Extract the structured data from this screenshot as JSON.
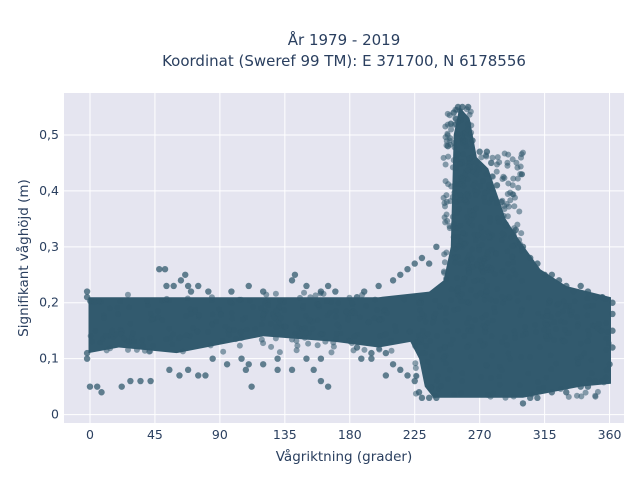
{
  "chart_data": {
    "type": "scatter",
    "title_lines": [
      "År 1979 - 2019",
      "Koordinat (Sweref 99 TM): E 371700, N 6178556"
    ],
    "xlabel": "Vågriktning (grader)",
    "ylabel": "Signifikant våghöjd (m)",
    "xlim": [
      -18,
      370
    ],
    "ylim": [
      -0.015,
      0.575
    ],
    "x_ticks": [
      0,
      45,
      90,
      135,
      180,
      225,
      270,
      315,
      360
    ],
    "x_tick_labels": [
      "0",
      "45",
      "90",
      "135",
      "180",
      "225",
      "270",
      "315",
      "360"
    ],
    "y_ticks": [
      0,
      0.1,
      0.2,
      0.3,
      0.4,
      0.5
    ],
    "y_tick_labels": [
      "0",
      "0,1",
      "0,2",
      "0,3",
      "0,4",
      "0,5"
    ],
    "grid": true,
    "marker_color": "#325a6e",
    "point_density_regions": [
      {
        "x_range": [
          0,
          360
        ],
        "y_range": [
          0.13,
          0.21
        ],
        "kind": "dense band"
      },
      {
        "x_range": [
          0,
          210
        ],
        "y_range": [
          0.11,
          0.22
        ],
        "kind": "band edges"
      },
      {
        "x_range": [
          225,
          360
        ],
        "y_range": [
          0.03,
          0.21
        ],
        "kind": "dense lower block"
      },
      {
        "x_range": [
          245,
          265
        ],
        "y_range": [
          0.21,
          0.55
        ],
        "kind": "peak"
      },
      {
        "x_range": [
          265,
          300
        ],
        "y_range": [
          0.21,
          0.47
        ],
        "kind": "peak shoulder"
      }
    ],
    "series": [
      {
        "points": [
          [
            0,
            0.05
          ],
          [
            5,
            0.05
          ],
          [
            8,
            0.04
          ],
          [
            22,
            0.05
          ],
          [
            28,
            0.06
          ],
          [
            35,
            0.06
          ],
          [
            42,
            0.06
          ],
          [
            48,
            0.26
          ],
          [
            52,
            0.26
          ],
          [
            53,
            0.23
          ],
          [
            58,
            0.23
          ],
          [
            63,
            0.24
          ],
          [
            66,
            0.25
          ],
          [
            68,
            0.23
          ],
          [
            70,
            0.22
          ],
          [
            75,
            0.23
          ],
          [
            82,
            0.22
          ],
          [
            98,
            0.22
          ],
          [
            110,
            0.23
          ],
          [
            120,
            0.22
          ],
          [
            140,
            0.24
          ],
          [
            142,
            0.25
          ],
          [
            150,
            0.23
          ],
          [
            160,
            0.22
          ],
          [
            165,
            0.23
          ],
          [
            170,
            0.22
          ],
          [
            55,
            0.08
          ],
          [
            62,
            0.07
          ],
          [
            68,
            0.08
          ],
          [
            75,
            0.07
          ],
          [
            80,
            0.07
          ],
          [
            85,
            0.1
          ],
          [
            95,
            0.09
          ],
          [
            105,
            0.1
          ],
          [
            120,
            0.09
          ],
          [
            130,
            0.1
          ],
          [
            150,
            0.1
          ],
          [
            160,
            0.1
          ],
          [
            108,
            0.08
          ],
          [
            110,
            0.09
          ],
          [
            130,
            0.08
          ],
          [
            140,
            0.08
          ],
          [
            155,
            0.08
          ],
          [
            160,
            0.06
          ],
          [
            165,
            0.05
          ],
          [
            112,
            0.05
          ],
          [
            185,
            0.21
          ],
          [
            190,
            0.22
          ],
          [
            200,
            0.23
          ],
          [
            210,
            0.24
          ],
          [
            215,
            0.25
          ],
          [
            220,
            0.26
          ],
          [
            225,
            0.27
          ],
          [
            230,
            0.28
          ],
          [
            235,
            0.27
          ],
          [
            240,
            0.3
          ],
          [
            255,
            0.55
          ],
          [
            258,
            0.55
          ],
          [
            262,
            0.55
          ],
          [
            252,
            0.54
          ],
          [
            250,
            0.52
          ],
          [
            248,
            0.48
          ],
          [
            262,
            0.52
          ],
          [
            265,
            0.49
          ],
          [
            270,
            0.47
          ],
          [
            275,
            0.47
          ],
          [
            278,
            0.45
          ],
          [
            282,
            0.41
          ],
          [
            285,
            0.38
          ],
          [
            288,
            0.34
          ],
          [
            295,
            0.33
          ],
          [
            300,
            0.3
          ],
          [
            305,
            0.28
          ],
          [
            310,
            0.27
          ],
          [
            315,
            0.25
          ],
          [
            320,
            0.25
          ],
          [
            325,
            0.24
          ],
          [
            330,
            0.23
          ],
          [
            335,
            0.22
          ],
          [
            340,
            0.23
          ],
          [
            345,
            0.22
          ],
          [
            350,
            0.21
          ],
          [
            355,
            0.21
          ],
          [
            185,
            0.12
          ],
          [
            195,
            0.11
          ],
          [
            205,
            0.11
          ],
          [
            210,
            0.09
          ],
          [
            215,
            0.08
          ],
          [
            220,
            0.07
          ],
          [
            205,
            0.07
          ],
          [
            188,
            0.1
          ],
          [
            195,
            0.1
          ],
          [
            225,
            0.06
          ],
          [
            228,
            0.04
          ],
          [
            230,
            0.03
          ],
          [
            235,
            0.03
          ],
          [
            240,
            0.03
          ],
          [
            300,
            0.02
          ],
          [
            305,
            0.03
          ],
          [
            310,
            0.03
          ],
          [
            320,
            0.04
          ],
          [
            330,
            0.04
          ],
          [
            340,
            0.05
          ],
          [
            345,
            0.05
          ],
          [
            350,
            0.06
          ],
          [
            355,
            0.06
          ],
          [
            358,
            0.08
          ],
          [
            360,
            0.09
          ],
          [
            362,
            0.12
          ],
          [
            362,
            0.15
          ],
          [
            362,
            0.18
          ],
          [
            362,
            0.2
          ],
          [
            -2,
            0.21
          ],
          [
            -2,
            0.22
          ],
          [
            -2,
            0.11
          ],
          [
            -2,
            0.1
          ]
        ]
      }
    ]
  }
}
